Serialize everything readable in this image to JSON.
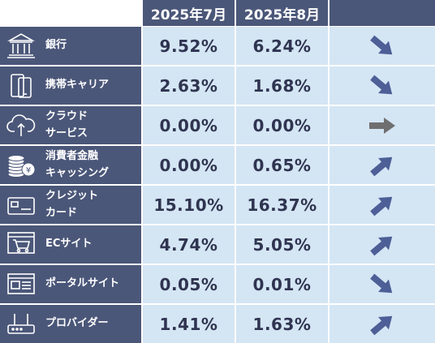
{
  "header": {
    "col1": "2025年7月",
    "col2": "2025年8月"
  },
  "colors": {
    "label_bg": "#4b5779",
    "cell_bg": "#d4e5f4",
    "arrow_blue": "#4d5f96",
    "arrow_gray": "#6f6f6f"
  },
  "rows": [
    {
      "name": "銀行",
      "icon": "bank-icon",
      "jul": "9.52%",
      "aug": "6.24%",
      "trend": "down"
    },
    {
      "name": "携帯キャリア",
      "icon": "smartphone-icon",
      "jul": "2.63%",
      "aug": "1.68%",
      "trend": "down"
    },
    {
      "name": "クラウド\nサービス",
      "icon": "cloud-upload-icon",
      "jul": "0.00%",
      "aug": "0.00%",
      "trend": "flat"
    },
    {
      "name": "消費者金融\nキャッシング",
      "icon": "coins-icon",
      "jul": "0.00%",
      "aug": "0.65%",
      "trend": "up"
    },
    {
      "name": "クレジット\nカード",
      "icon": "credit-card-icon",
      "jul": "15.10%",
      "aug": "16.37%",
      "trend": "up"
    },
    {
      "name": "ECサイト",
      "icon": "shopping-cart-icon",
      "jul": "4.74%",
      "aug": "5.05%",
      "trend": "up"
    },
    {
      "name": "ポータルサイト",
      "icon": "browser-window-icon",
      "jul": "0.05%",
      "aug": "0.01%",
      "trend": "down"
    },
    {
      "name": "プロバイダー",
      "icon": "router-icon",
      "jul": "1.41%",
      "aug": "1.63%",
      "trend": "up"
    }
  ]
}
